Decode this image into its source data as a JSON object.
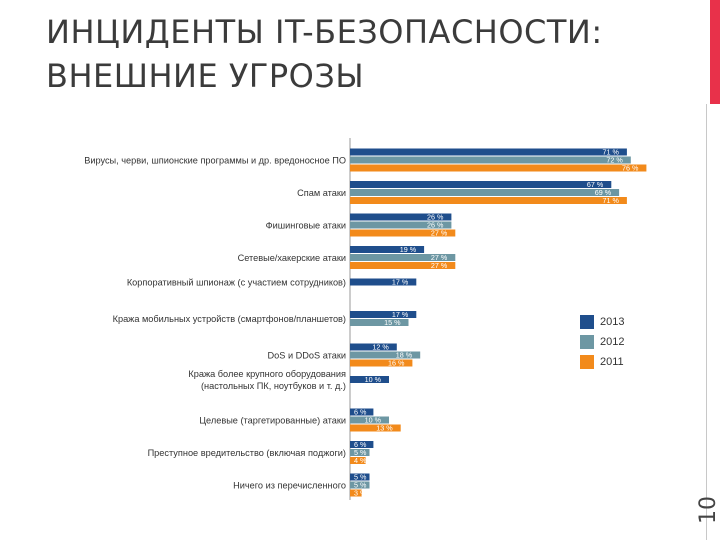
{
  "title": {
    "line1": "ИНЦИДЕНТЫ IT-БЕЗОПАСНОСТИ:",
    "line2": "ВНЕШНИЕ УГРОЗЫ"
  },
  "page_number": "10",
  "colors": {
    "2013": "#1f4e8c",
    "2012": "#6d97a3",
    "2011": "#f28a1b",
    "accent": "#e8314a"
  },
  "chart_data": {
    "type": "bar",
    "orientation": "horizontal",
    "legend_position": "right",
    "series_order": [
      "2013",
      "2012",
      "2011"
    ],
    "categories": [
      {
        "label": [
          "Вирусы, черви, шпионские программы и др. вредоносное ПО"
        ],
        "values": {
          "2013": 71,
          "2012": 72,
          "2011": 76
        },
        "labels": {
          "2013": "71 %",
          "2012": "72 %",
          "2011": "76 %"
        }
      },
      {
        "label": [
          "Спам атаки"
        ],
        "values": {
          "2013": 67,
          "2012": 69,
          "2011": 71
        },
        "labels": {
          "2013": "67 %",
          "2012": "69 %",
          "2011": "71 %"
        }
      },
      {
        "label": [
          "Фишинговые атаки"
        ],
        "values": {
          "2013": 26,
          "2012": 26,
          "2011": 27
        },
        "labels": {
          "2013": "26 %",
          "2012": "26 %",
          "2011": "27 %"
        }
      },
      {
        "label": [
          "Сетевые/хакерские атаки"
        ],
        "values": {
          "2013": 19,
          "2012": 27,
          "2011": 27
        },
        "labels": {
          "2013": "19 %",
          "2012": "27 %",
          "2011": "27 %"
        }
      },
      {
        "label": [
          "Корпоративный шпионаж (с участием сотрудников)"
        ],
        "values": {
          "2013": 17
        },
        "labels": {
          "2013": "17 %"
        }
      },
      {
        "label": [
          "Кража мобильных устройств (смартфонов/планшетов)"
        ],
        "values": {
          "2013": 17,
          "2012": 15
        },
        "labels": {
          "2013": "17 %",
          "2012": "15 %"
        }
      },
      {
        "label": [
          "DoS и DDoS атаки"
        ],
        "values": {
          "2013": 12,
          "2012": 18,
          "2011": 16
        },
        "labels": {
          "2013": "12 %",
          "2012": "18 %",
          "2011": "16 %"
        }
      },
      {
        "label": [
          "Кража более крупного оборудования",
          "(настольных ПК, ноутбуков и т. д.)"
        ],
        "values": {
          "2013": 10
        },
        "labels": {
          "2013": "10 %"
        }
      },
      {
        "label": [
          "Целевые (таргетированные) атаки"
        ],
        "values": {
          "2013": 6,
          "2012": 10,
          "2011": 13
        },
        "labels": {
          "2013": "6 %",
          "2012": "10 %",
          "2011": "13 %"
        }
      },
      {
        "label": [
          "Преступное вредительство (включая поджоги)"
        ],
        "values": {
          "2013": 6,
          "2012": 5,
          "2011": 4
        },
        "labels": {
          "2013": "6 %",
          "2012": "5 %",
          "2011": "4 %"
        }
      },
      {
        "label": [
          "Ничего из перечисленного"
        ],
        "values": {
          "2013": 5,
          "2012": 5,
          "2011": 3
        },
        "labels": {
          "2013": "5 %",
          "2012": "5 %",
          "2011": "3 %"
        }
      }
    ],
    "xlim": [
      0,
      80
    ],
    "grid": false
  }
}
